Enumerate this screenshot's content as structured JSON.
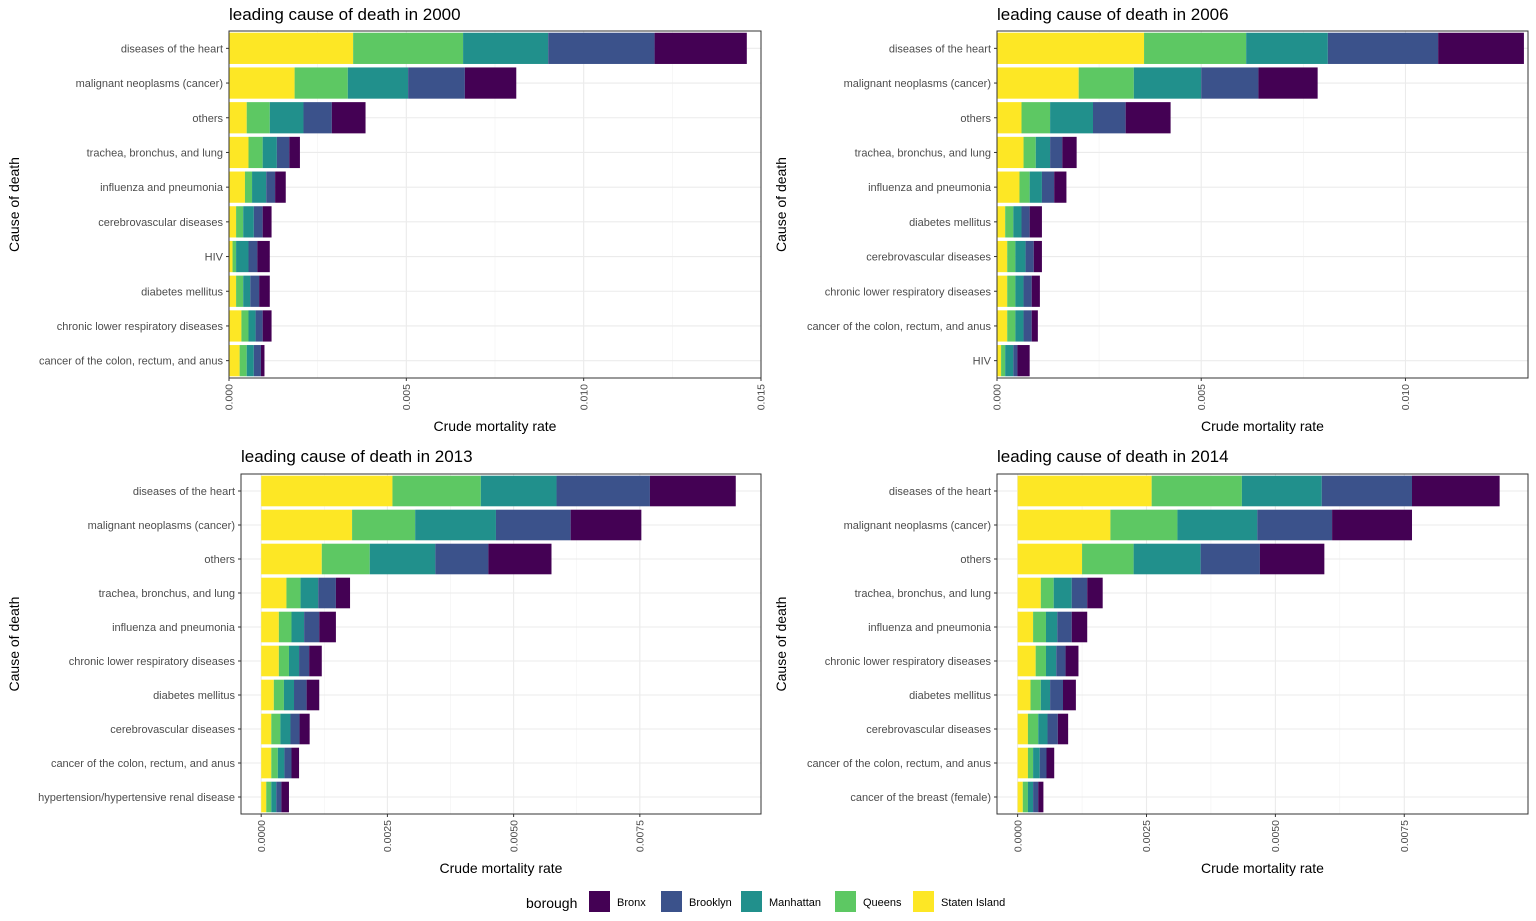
{
  "legend": {
    "title": "borough",
    "items": [
      {
        "name": "Bronx",
        "color": "#440154"
      },
      {
        "name": "Brooklyn",
        "color": "#3b528b"
      },
      {
        "name": "Manhattan",
        "color": "#21908c"
      },
      {
        "name": "Queens",
        "color": "#5dc863"
      },
      {
        "name": "Staten Island",
        "color": "#fde725"
      }
    ]
  },
  "chart_data": [
    {
      "type": "bar",
      "orientation": "horizontal",
      "stacked": true,
      "title": "leading cause of death in 2000",
      "xlabel": "Crude mortality rate",
      "ylabel": "Cause of death",
      "xlim": [
        0,
        0.015
      ],
      "xticks": [
        "0.000",
        "0.005",
        "0.010",
        "0.015"
      ],
      "xtick_values": [
        0,
        0.005,
        0.01,
        0.015
      ],
      "categories": [
        "diseases of the heart",
        "malignant neoplasms (cancer)",
        "others",
        "trachea, bronchus, and lung",
        "influenza and pneumonia",
        "cerebrovascular diseases",
        "HIV",
        "diabetes mellitus",
        "chronic lower respiratory diseases",
        "cancer of the colon, rectum, and anus"
      ],
      "series": [
        {
          "name": "Staten Island",
          "values": [
            0.0035,
            0.00185,
            0.0005,
            0.00055,
            0.00045,
            0.0002,
            0.0001,
            0.0002,
            0.00035,
            0.0003
          ]
        },
        {
          "name": "Queens",
          "values": [
            0.0031,
            0.0015,
            0.00065,
            0.0004,
            0.0002,
            0.0002,
            0.0001,
            0.0002,
            0.0002,
            0.0002
          ]
        },
        {
          "name": "Manhattan",
          "values": [
            0.0024,
            0.0017,
            0.00095,
            0.0004,
            0.0004,
            0.0003,
            0.00035,
            0.0002,
            0.0002,
            0.0002
          ]
        },
        {
          "name": "Brooklyn",
          "values": [
            0.003,
            0.0016,
            0.0008,
            0.00035,
            0.00025,
            0.00025,
            0.00025,
            0.00025,
            0.0002,
            0.0002
          ]
        },
        {
          "name": "Bronx",
          "values": [
            0.0026,
            0.00145,
            0.00095,
            0.0003,
            0.0003,
            0.00025,
            0.00035,
            0.0003,
            0.00025,
            0.0001
          ]
        }
      ]
    },
    {
      "type": "bar",
      "orientation": "horizontal",
      "stacked": true,
      "title": "leading cause of death in 2006",
      "xlabel": "Crude mortality rate",
      "ylabel": "Cause of death",
      "xlim": [
        0,
        0.013
      ],
      "xticks": [
        "0.000",
        "0.005",
        "0.010"
      ],
      "xtick_values": [
        0,
        0.005,
        0.01
      ],
      "categories": [
        "diseases of the heart",
        "malignant neoplasms (cancer)",
        "others",
        "trachea, bronchus, and lung",
        "influenza and pneumonia",
        "diabetes mellitus",
        "cerebrovascular diseases",
        "chronic lower respiratory diseases",
        "cancer of the colon, rectum, and anus",
        "HIV"
      ],
      "series": [
        {
          "name": "Staten Island",
          "values": [
            0.0036,
            0.002,
            0.0006,
            0.00065,
            0.00055,
            0.0002,
            0.00025,
            0.00025,
            0.00025,
            0.0001
          ]
        },
        {
          "name": "Queens",
          "values": [
            0.0025,
            0.00135,
            0.0007,
            0.0003,
            0.00025,
            0.0002,
            0.0002,
            0.0002,
            0.0002,
            0.0001
          ]
        },
        {
          "name": "Manhattan",
          "values": [
            0.002,
            0.00165,
            0.00105,
            0.00035,
            0.0003,
            0.0002,
            0.00025,
            0.0002,
            0.0002,
            0.0002
          ]
        },
        {
          "name": "Brooklyn",
          "values": [
            0.0027,
            0.0014,
            0.0008,
            0.0003,
            0.0003,
            0.0002,
            0.0002,
            0.0002,
            0.0002,
            0.0001
          ]
        },
        {
          "name": "Bronx",
          "values": [
            0.0021,
            0.00145,
            0.0011,
            0.00035,
            0.0003,
            0.0003,
            0.0002,
            0.0002,
            0.00015,
            0.0003
          ]
        }
      ]
    },
    {
      "type": "bar",
      "orientation": "horizontal",
      "stacked": true,
      "title": "leading cause of death in 2013",
      "xlabel": "Crude mortality rate",
      "ylabel": "Cause of death",
      "xlim": [
        -0.0004,
        0.0099
      ],
      "xticks": [
        "0.0000",
        "0.0025",
        "0.0050",
        "0.0075"
      ],
      "xtick_values": [
        0,
        0.0025,
        0.005,
        0.0075
      ],
      "categories": [
        "diseases of the heart",
        "malignant neoplasms (cancer)",
        "others",
        "trachea, bronchus, and lung",
        "influenza and pneumonia",
        "chronic lower respiratory diseases",
        "diabetes mellitus",
        "cerebrovascular diseases",
        "cancer of the colon, rectum, and anus",
        "hypertension/hypertensive renal disease"
      ],
      "series": [
        {
          "name": "Staten Island",
          "values": [
            0.0026,
            0.0018,
            0.0012,
            0.0005,
            0.00035,
            0.00035,
            0.00025,
            0.0002,
            0.0002,
            0.0001
          ]
        },
        {
          "name": "Queens",
          "values": [
            0.00175,
            0.00125,
            0.00095,
            0.00028,
            0.00025,
            0.0002,
            0.0002,
            0.00018,
            0.00013,
            0.0001
          ]
        },
        {
          "name": "Manhattan",
          "values": [
            0.0015,
            0.0016,
            0.0013,
            0.00035,
            0.00025,
            0.0002,
            0.0002,
            0.0002,
            0.00013,
            0.0001
          ]
        },
        {
          "name": "Brooklyn",
          "values": [
            0.00185,
            0.00148,
            0.00105,
            0.00035,
            0.0003,
            0.0002,
            0.00025,
            0.00018,
            0.00014,
            0.0001
          ]
        },
        {
          "name": "Bronx",
          "values": [
            0.0017,
            0.0014,
            0.00125,
            0.00028,
            0.00033,
            0.00025,
            0.00025,
            0.0002,
            0.00015,
            0.00015
          ]
        }
      ]
    },
    {
      "type": "bar",
      "orientation": "horizontal",
      "stacked": true,
      "title": "leading cause of death in 2014",
      "xlabel": "Crude mortality rate",
      "ylabel": "Cause of death",
      "xlim": [
        -0.0004,
        0.0099
      ],
      "xticks": [
        "0.0000",
        "0.0025",
        "0.0050",
        "0.0075"
      ],
      "xtick_values": [
        0,
        0.0025,
        0.005,
        0.0075
      ],
      "categories": [
        "diseases of the heart",
        "malignant neoplasms (cancer)",
        "others",
        "trachea, bronchus, and lung",
        "influenza and pneumonia",
        "chronic lower respiratory diseases",
        "diabetes mellitus",
        "cerebrovascular diseases",
        "cancer of the colon, rectum, and anus",
        "cancer of the breast (female)"
      ],
      "series": [
        {
          "name": "Staten Island",
          "values": [
            0.0026,
            0.0018,
            0.00125,
            0.00045,
            0.0003,
            0.00035,
            0.00025,
            0.0002,
            0.0002,
            0.0001
          ]
        },
        {
          "name": "Queens",
          "values": [
            0.00175,
            0.0013,
            0.001,
            0.00025,
            0.00025,
            0.0002,
            0.0002,
            0.0002,
            0.0001,
            0.0001
          ]
        },
        {
          "name": "Manhattan",
          "values": [
            0.00155,
            0.00155,
            0.0013,
            0.00035,
            0.00022,
            0.0002,
            0.00018,
            0.00018,
            0.00013,
            0.0001
          ]
        },
        {
          "name": "Brooklyn",
          "values": [
            0.00175,
            0.00145,
            0.00115,
            0.0003,
            0.00028,
            0.00018,
            0.00025,
            0.0002,
            0.00013,
            0.0001
          ]
        },
        {
          "name": "Bronx",
          "values": [
            0.0017,
            0.00155,
            0.00125,
            0.0003,
            0.0003,
            0.00025,
            0.00025,
            0.0002,
            0.00015,
            0.0001
          ]
        }
      ]
    }
  ]
}
